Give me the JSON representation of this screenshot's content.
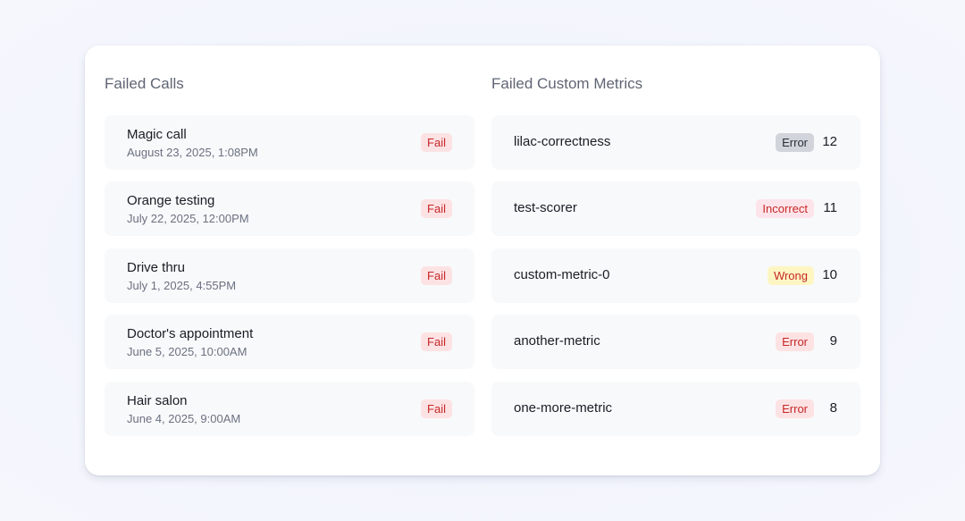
{
  "failed_calls": {
    "title": "Failed Calls",
    "items": [
      {
        "name": "Magic call",
        "date": "August 23, 2025, 1:08PM",
        "status": "Fail"
      },
      {
        "name": "Orange testing",
        "date": "July 22, 2025, 12:00PM",
        "status": "Fail"
      },
      {
        "name": "Drive thru",
        "date": "July 1, 2025, 4:55PM",
        "status": "Fail"
      },
      {
        "name": "Doctor's appointment",
        "date": "June 5, 2025, 10:00AM",
        "status": "Fail"
      },
      {
        "name": "Hair salon",
        "date": "June 4, 2025, 9:00AM",
        "status": "Fail"
      }
    ]
  },
  "failed_metrics": {
    "title": "Failed Custom Metrics",
    "items": [
      {
        "name": "lilac-correctness",
        "status": "Error",
        "count": "12",
        "badge_bg": "#d1d4da",
        "badge_fg": "#2b2f38"
      },
      {
        "name": "test-scorer",
        "status": "Incorrect",
        "count": "11",
        "badge_bg": "#fde4ea",
        "badge_fg": "#c62828"
      },
      {
        "name": "custom-metric-0",
        "status": "Wrong",
        "count": "10",
        "badge_bg": "#fdf6c3",
        "badge_fg": "#c62828"
      },
      {
        "name": "another-metric",
        "status": "Error",
        "count": "9",
        "badge_bg": "#fde2e4",
        "badge_fg": "#c62828"
      },
      {
        "name": "one-more-metric",
        "status": "Error",
        "count": "8",
        "badge_bg": "#fde2e4",
        "badge_fg": "#c62828"
      }
    ]
  }
}
